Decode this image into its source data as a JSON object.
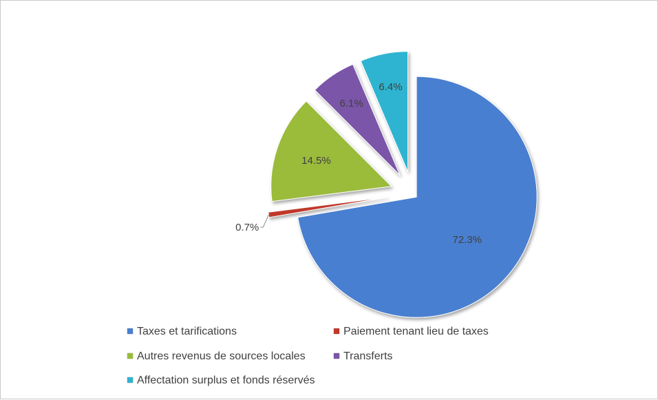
{
  "chart_data": {
    "type": "pie",
    "title": "",
    "exploded": true,
    "legend_position": "bottom",
    "slices": [
      {
        "label": "Taxes et tarifications",
        "value": 72.3,
        "value_label": "72.3%",
        "color": "#4a7fd0"
      },
      {
        "label": "Paiement tenant lieu de taxes",
        "value": 0.7,
        "value_label": "0.7%",
        "color": "#c0392b"
      },
      {
        "label": "Autres revenus de sources locales",
        "value": 14.5,
        "value_label": "14.5%",
        "color": "#9bbb3b"
      },
      {
        "label": "Transferts",
        "value": 6.1,
        "value_label": "6.1%",
        "color": "#7a55a8"
      },
      {
        "label": "Affectation surplus et fonds réservés",
        "value": 6.4,
        "value_label": "6.4%",
        "color": "#2fb4d0"
      }
    ]
  }
}
